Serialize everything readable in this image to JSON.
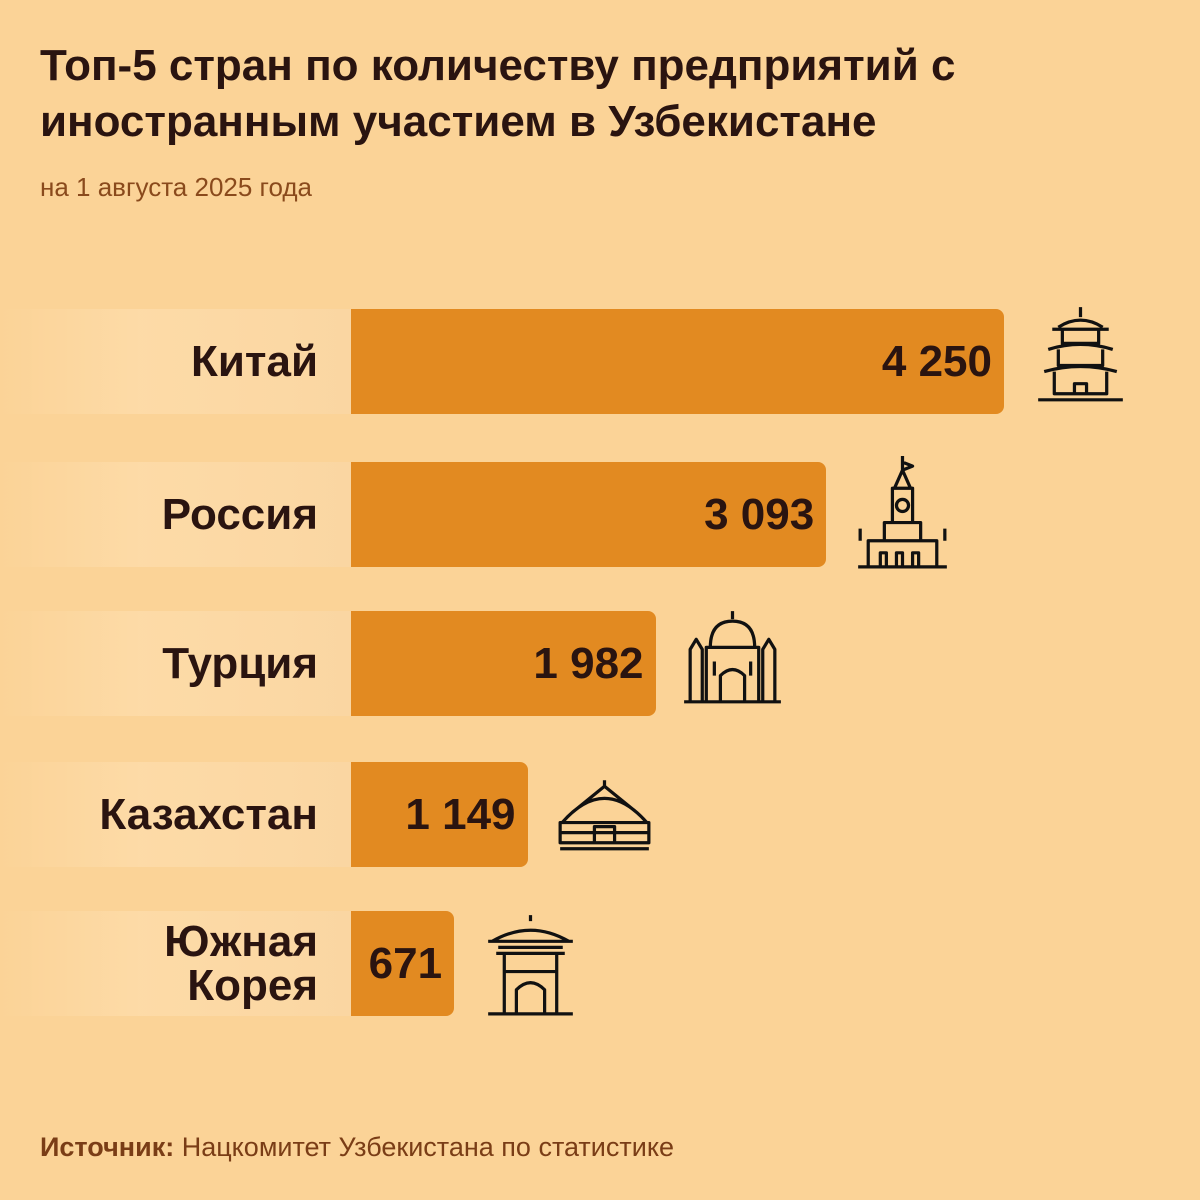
{
  "chart_data": {
    "type": "bar",
    "orientation": "horizontal",
    "title": "Топ-5 стран по количеству предприятий с иностранным участием в Узбекистане",
    "subtitle": "на 1 августа 2025 года",
    "categories": [
      "Китай",
      "Россия",
      "Турция",
      "Казахстан",
      "Южная Корея"
    ],
    "values": [
      4250,
      3093,
      1982,
      1149,
      671
    ],
    "value_labels": [
      "4 250",
      "3 093",
      "1 982",
      "1 149",
      "671"
    ],
    "icons": [
      "pagoda-icon",
      "kremlin-tower-icon",
      "mosque-icon",
      "yurt-icon",
      "korean-gate-icon"
    ],
    "xlim": [
      0,
      4250
    ],
    "grid": false,
    "bar_color": "#e28a21",
    "background_color": "#fbd397"
  },
  "source": {
    "label": "Источник:",
    "text": " Нацкомитет Узбекистана по статистике"
  }
}
